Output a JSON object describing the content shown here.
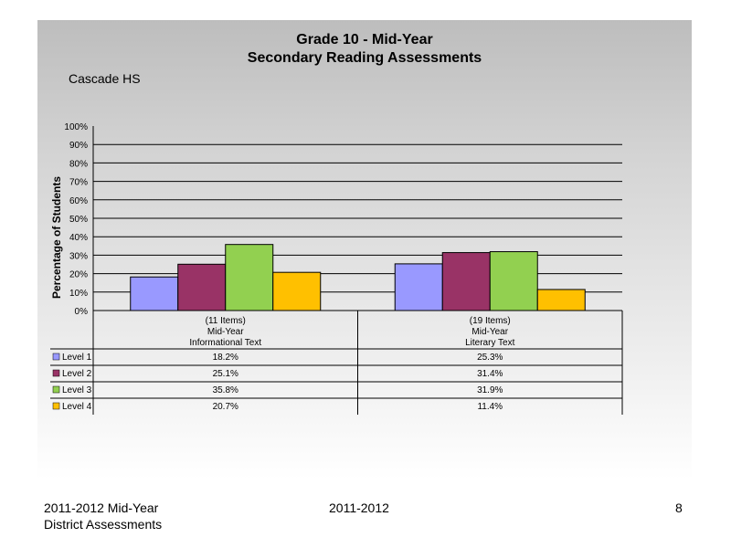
{
  "slide": {
    "title_line1": "Grade 10 - Mid-Year",
    "title_line2": "Secondary Reading Assessments",
    "school": "Cascade HS"
  },
  "footer": {
    "left_line1": "2011-2012  Mid-Year",
    "left_line2": "District Assessments",
    "center": "2011-2012",
    "page_number": "8"
  },
  "chart_data": {
    "type": "bar",
    "ylabel": "Percentage of Students",
    "ylim": [
      0,
      100
    ],
    "yticks": [
      "0%",
      "10%",
      "20%",
      "30%",
      "40%",
      "50%",
      "60%",
      "70%",
      "80%",
      "90%",
      "100%"
    ],
    "grid": "horizontal",
    "categories": [
      [
        "(11 Items)",
        "Mid-Year",
        "Informational Text"
      ],
      [
        "(19 Items)",
        "Mid-Year",
        "Literary Text"
      ]
    ],
    "series": [
      {
        "name": "Level 1",
        "color": "#9999ff",
        "values": [
          18.2,
          25.3
        ],
        "labels": [
          "18.2%",
          "25.3%"
        ]
      },
      {
        "name": "Level 2",
        "color": "#993366",
        "values": [
          25.1,
          31.4
        ],
        "labels": [
          "25.1%",
          "31.4%"
        ]
      },
      {
        "name": "Level 3",
        "color": "#92d050",
        "values": [
          35.8,
          31.9
        ],
        "labels": [
          "35.8%",
          "31.9%"
        ]
      },
      {
        "name": "Level 4",
        "color": "#ffc000",
        "values": [
          20.7,
          11.4
        ],
        "labels": [
          "20.7%",
          "11.4%"
        ]
      }
    ],
    "legend": "data-table-left"
  }
}
